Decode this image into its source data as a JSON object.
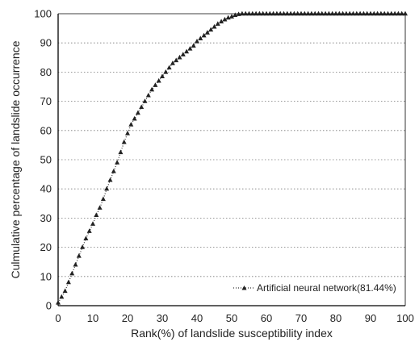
{
  "chart_data": {
    "type": "line",
    "title": "",
    "xlabel": "Rank(%) of landslide susceptibility index",
    "ylabel": "Culmulative percentage of landslide occurrence",
    "xlim": [
      0,
      100
    ],
    "ylim": [
      0,
      100
    ],
    "x_ticks": [
      "0",
      "10",
      "20",
      "30",
      "40",
      "50",
      "60",
      "70",
      "80",
      "90",
      "100"
    ],
    "y_ticks": [
      "0",
      "10",
      "20",
      "30",
      "40",
      "50",
      "60",
      "70",
      "80",
      "90",
      "100"
    ],
    "grid": "horizontal dotted",
    "legend_position": "bottom-right",
    "series": [
      {
        "name": "Artificial neural network(81.44%)",
        "marker": "triangle",
        "color": "#222222",
        "x": [
          0,
          1,
          2,
          3,
          4,
          5,
          6,
          7,
          8,
          9,
          10,
          11,
          12,
          13,
          14,
          15,
          16,
          17,
          18,
          19,
          20,
          21,
          22,
          23,
          24,
          25,
          26,
          27,
          28,
          29,
          30,
          31,
          32,
          33,
          34,
          35,
          36,
          37,
          38,
          39,
          40,
          41,
          42,
          43,
          44,
          45,
          46,
          47,
          48,
          49,
          50,
          51,
          52,
          53,
          54,
          55,
          56,
          57,
          58,
          59,
          60,
          61,
          62,
          63,
          64,
          65,
          66,
          67,
          68,
          69,
          70,
          71,
          72,
          73,
          74,
          75,
          76,
          77,
          78,
          79,
          80,
          81,
          82,
          83,
          84,
          85,
          86,
          87,
          88,
          89,
          90,
          91,
          92,
          93,
          94,
          95,
          96,
          97,
          98,
          99,
          100
        ],
        "y": [
          1,
          3,
          5,
          8,
          11,
          14,
          17,
          20,
          23,
          25.5,
          28,
          31,
          33.5,
          36.5,
          40,
          43,
          46,
          49,
          52.5,
          56,
          59,
          62,
          64,
          66,
          68,
          70,
          72,
          74,
          75.5,
          77,
          78.5,
          80,
          81.5,
          83,
          84,
          85,
          86,
          87,
          88,
          89,
          90.5,
          91.5,
          92.5,
          93.5,
          94.5,
          95.5,
          96.5,
          97.3,
          98,
          98.6,
          99,
          99.5,
          99.8,
          100,
          100,
          100,
          100,
          100,
          100,
          100,
          100,
          100,
          100,
          100,
          100,
          100,
          100,
          100,
          100,
          100,
          100,
          100,
          100,
          100,
          100,
          100,
          100,
          100,
          100,
          100,
          100,
          100,
          100,
          100,
          100,
          100,
          100,
          100,
          100,
          100,
          100,
          100,
          100,
          100,
          100,
          100,
          100,
          100,
          100,
          100,
          100
        ]
      }
    ]
  }
}
